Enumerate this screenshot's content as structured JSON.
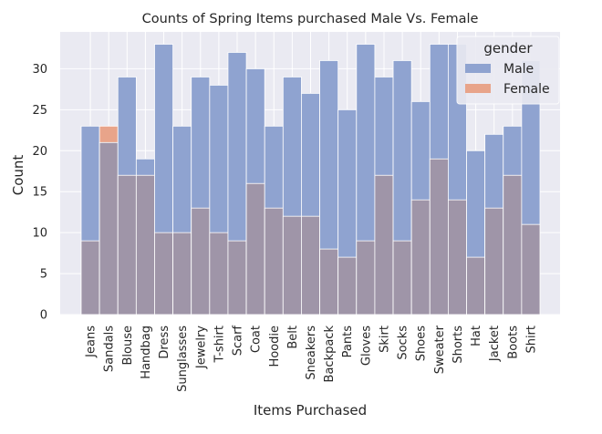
{
  "chart_data": {
    "type": "bar",
    "title": "Counts of Spring Items purchased Male Vs. Female",
    "xlabel": "Items Purchased",
    "ylabel": "Count",
    "ylim": [
      0,
      34.5
    ],
    "yticks": [
      0,
      5,
      10,
      15,
      20,
      25,
      30
    ],
    "grid": true,
    "legend": {
      "title": "gender",
      "placement": "top-right"
    },
    "categories": [
      "Jeans",
      "Sandals",
      "Blouse",
      "Handbag",
      "Dress",
      "Sunglasses",
      "Jewelry",
      "T-shirt",
      "Scarf",
      "Coat",
      "Hoodie",
      "Belt",
      "Sneakers",
      "Backpack",
      "Pants",
      "Gloves",
      "Skirt",
      "Socks",
      "Shoes",
      "Sweater",
      "Shorts",
      "Hat",
      "Jacket",
      "Boots",
      "Shirt"
    ],
    "series": [
      {
        "name": "Male",
        "color": "#8fa3d0",
        "values": [
          23,
          21,
          29,
          19,
          33,
          23,
          29,
          28,
          32,
          30,
          23,
          29,
          27,
          31,
          25,
          33,
          29,
          31,
          26,
          33,
          33,
          20,
          22,
          23,
          31
        ]
      },
      {
        "name": "Female",
        "color": "#e8a48a",
        "values": [
          9,
          23,
          17,
          17,
          10,
          10,
          13,
          10,
          9,
          16,
          13,
          12,
          12,
          8,
          7,
          9,
          17,
          9,
          14,
          19,
          14,
          7,
          13,
          17,
          11
        ]
      }
    ],
    "colors": {
      "background": "#eaeaf2",
      "grid": "#ffffff",
      "overlap": "#9f95a8"
    }
  }
}
